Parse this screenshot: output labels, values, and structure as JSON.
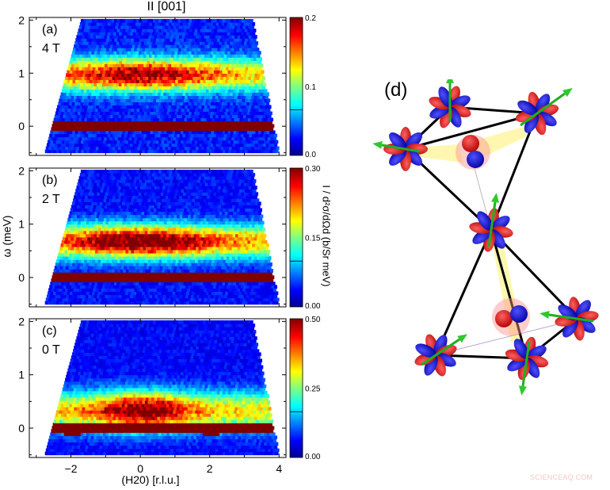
{
  "figure": {
    "title": "II [001]",
    "ylabel": "ω (meV)",
    "xlabel": "(H20) [r.l.u.]",
    "colorbar_label": "I / d²σ/dΩd (b/Sr meV)",
    "diagram_label": "(d)",
    "watermark": "SCIENCEAQ.COM"
  },
  "chart_data": [
    {
      "type": "heatmap",
      "panel": "(a)",
      "field": "4 T",
      "title": "II [001]",
      "xlabel": "(H20) [r.l.u.]",
      "ylabel": "ω (meV)",
      "xlim": [
        -3.2,
        4.2
      ],
      "ylim": [
        -0.55,
        2.05
      ],
      "xticks": [
        -2,
        0,
        2,
        4
      ],
      "yticks": [
        0,
        1,
        2
      ],
      "colorbar": {
        "min": 0.0,
        "max": 0.2,
        "ticks": [
          "0.0",
          "0.1",
          "0.2"
        ]
      },
      "features": [
        {
          "desc": "elastic line (saturated)",
          "omega": 0.0,
          "intensity": 0.2
        },
        {
          "desc": "broad excitation band",
          "omega_center": 0.95,
          "omega_width": 0.3,
          "peak_H": 0.0,
          "peak_intensity": 0.17
        },
        {
          "desc": "background",
          "intensity": 0.03
        }
      ]
    },
    {
      "type": "heatmap",
      "panel": "(b)",
      "field": "2 T",
      "xlim": [
        -3.2,
        4.2
      ],
      "ylim": [
        -0.55,
        2.05
      ],
      "xticks": [
        -2,
        0,
        2,
        4
      ],
      "yticks": [
        0,
        1,
        2
      ],
      "colorbar": {
        "min": 0.0,
        "max": 0.3,
        "ticks": [
          "0.00",
          "0.15",
          "0.30"
        ]
      },
      "features": [
        {
          "desc": "elastic line (saturated)",
          "omega": 0.0,
          "intensity": 0.3
        },
        {
          "desc": "excitation band",
          "omega_center": 0.65,
          "omega_width": 0.3,
          "peak_H": 0.0,
          "peak_intensity": 0.29
        },
        {
          "desc": "background",
          "intensity": 0.04
        }
      ]
    },
    {
      "type": "heatmap",
      "panel": "(c)",
      "field": "0 T",
      "xlim": [
        -3.2,
        4.2
      ],
      "ylim": [
        -0.55,
        2.05
      ],
      "xticks": [
        -2,
        0,
        2,
        4
      ],
      "yticks": [
        0,
        1,
        2
      ],
      "colorbar": {
        "min": 0.0,
        "max": 0.5,
        "ticks": [
          "0.00",
          "0.25",
          "0.50"
        ]
      },
      "features": [
        {
          "desc": "elastic line (saturated, with Bragg bumps at H=-2 and 2)",
          "omega": 0.0,
          "intensity": 0.5
        },
        {
          "desc": "quasielastic excitation",
          "omega_center": 0.3,
          "omega_width": 0.35,
          "peak_H": 0.0,
          "peak_intensity": 0.48
        },
        {
          "desc": "background",
          "intensity": 0.06
        }
      ]
    }
  ],
  "panels": [
    {
      "letter": "(a)",
      "field": "4 T",
      "cb": [
        "0.2",
        "0.1",
        "0.0"
      ]
    },
    {
      "letter": "(b)",
      "field": "2 T",
      "cb": [
        "0.30",
        "0.15",
        "0.00"
      ]
    },
    {
      "letter": "(c)",
      "field": "0 T",
      "cb": [
        "0.50",
        "0.25",
        "0.00"
      ]
    }
  ],
  "yticks": [
    "2",
    "1",
    "0"
  ],
  "xticks": [
    "−2",
    "0",
    "2",
    "4"
  ]
}
